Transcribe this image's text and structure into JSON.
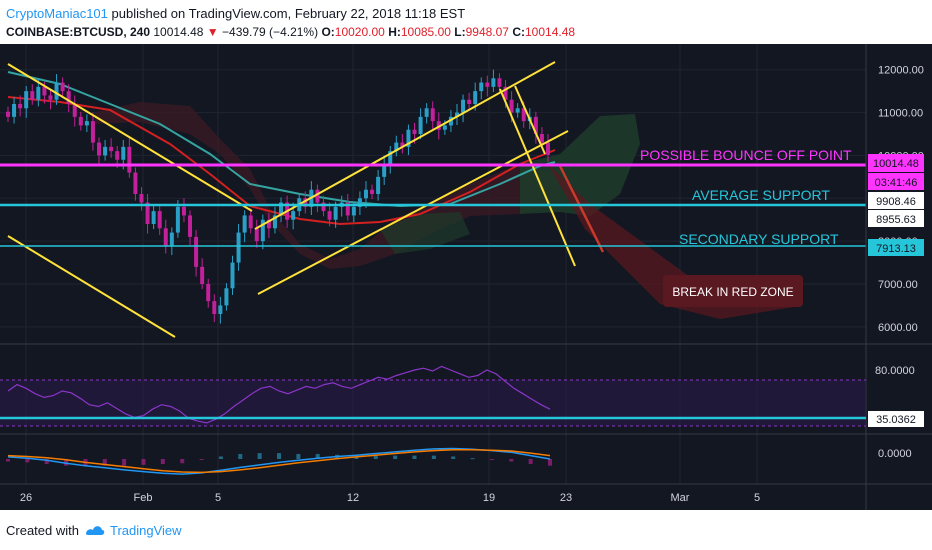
{
  "header": {
    "author": "CryptoManiac101",
    "published": "published on TradingView.com, February 22, 2018 11:18 EST",
    "symbol": "COINBASE:BTCUSD, 240",
    "last": "10014.48",
    "arrow": "▼",
    "change": "−439.79 (−4.21%)",
    "open_label": "O:",
    "open": "10020.00",
    "high_label": "H:",
    "high": "10085.00",
    "low_label": "L:",
    "low": "9948.07",
    "close_label": "C:",
    "close": "10014.48"
  },
  "footer": {
    "created": "Created with",
    "brand": "TradingView"
  },
  "colors": {
    "background": "#131722",
    "candle_up": "#2aa0c8",
    "candle_down": "#c2219b",
    "trendline": "#ffe23a",
    "support": "#26c6da",
    "bounce": "#ff35ff",
    "ma_red": "#d42020",
    "ma_teal": "#35a3a0",
    "rsi": "#8c35c9"
  },
  "chart_data": [
    {
      "type": "candlestick",
      "symbol": "COINBASE:BTCUSD",
      "interval": "240",
      "x_ticks": [
        "26",
        "Feb",
        "5",
        "12",
        "19",
        "23",
        "Mar",
        "5"
      ],
      "y_ticks": [
        "6000.00",
        "7000.00",
        "8000.00",
        "9000.00",
        "10000.00",
        "11000.00",
        "12000.00"
      ],
      "ylim": [
        5600,
        12600
      ],
      "close_series": [
        10900,
        11200,
        11100,
        11500,
        11300,
        11600,
        11400,
        11300,
        11700,
        11500,
        11200,
        10900,
        10700,
        10800,
        10300,
        10000,
        10200,
        10100,
        9900,
        10200,
        9600,
        9100,
        8900,
        8400,
        8700,
        8300,
        7900,
        8200,
        8800,
        8600,
        8100,
        7400,
        7000,
        6600,
        6300,
        6500,
        6900,
        7500,
        8200,
        8600,
        8300,
        8000,
        8500,
        8300,
        8600,
        8900,
        8500,
        8700,
        9000,
        8800,
        9200,
        8900,
        8700,
        8500,
        8800,
        8900,
        8600,
        8800,
        9000,
        9200,
        9100,
        9500,
        9800,
        10100,
        10300,
        10200,
        10600,
        10500,
        10900,
        11100,
        10800,
        10600,
        10700,
        10900,
        11000,
        11300,
        11200,
        11500,
        11700,
        11600,
        11800,
        11600,
        11300,
        11000,
        11100,
        10800,
        10900,
        10500,
        10300,
        10014
      ],
      "annotations": [
        "POSSIBLE BOUNCE OFF POINT",
        "AVERAGE SUPPORT",
        "SECONDARY SUPPORT",
        "BREAK IN RED ZONE"
      ],
      "price_labels": [
        {
          "label": "10014.48",
          "value": 10014.48
        },
        {
          "label": "03:41:46",
          "value": null
        },
        {
          "label": "9908.46",
          "value": 9908.46
        },
        {
          "label": "8955.63",
          "value": 8955.63
        },
        {
          "label": "7913.13",
          "value": 7913.13
        }
      ],
      "horizontal_levels": [
        {
          "name": "POSSIBLE BOUNCE OFF POINT",
          "value": 10014.48
        },
        {
          "name": "AVERAGE SUPPORT",
          "value": 9908.46
        },
        {
          "name": "SECONDARY SUPPORT",
          "value": 7913.13
        }
      ]
    },
    {
      "type": "line",
      "indicator": "RSI",
      "y_ticks": [
        "80.0000",
        "35.0362"
      ],
      "ylim": [
        10,
        100
      ],
      "bands": [
        70,
        30
      ],
      "last_value": 35.0362,
      "values": [
        55,
        62,
        58,
        52,
        48,
        50,
        55,
        53,
        47,
        40,
        38,
        42,
        36,
        30,
        26,
        28,
        35,
        40,
        38,
        33,
        25,
        22,
        20,
        24,
        30,
        38,
        45,
        52,
        58,
        60,
        55,
        52,
        56,
        60,
        58,
        62,
        64,
        60,
        58,
        62,
        66,
        70,
        68,
        72,
        75,
        78,
        80,
        77,
        82,
        78,
        74,
        70,
        72,
        78,
        74,
        66,
        58,
        52,
        46,
        40,
        35
      ]
    },
    {
      "type": "line",
      "indicator": "MACD",
      "y_ticks": [
        "0.0000"
      ],
      "ylim": [
        -5,
        5
      ],
      "macd": [
        0.5,
        0.2,
        -0.3,
        -1.0,
        -1.6,
        -2.1,
        -2.6,
        -3.0,
        -3.4,
        -3.6,
        -3.3,
        -2.7,
        -2.0,
        -1.4,
        -0.8,
        -0.3,
        0.2,
        0.6,
        0.9,
        1.3,
        1.7,
        2.1,
        2.4,
        2.5,
        2.3,
        2.0,
        1.6,
        0.8,
        0.0
      ],
      "signal": [
        0.8,
        0.6,
        0.3,
        -0.2,
        -0.8,
        -1.3,
        -1.8,
        -2.3,
        -2.8,
        -3.1,
        -3.2,
        -3.0,
        -2.6,
        -2.1,
        -1.5,
        -0.9,
        -0.4,
        0.1,
        0.5,
        0.9,
        1.3,
        1.7,
        2.0,
        2.2,
        2.2,
        2.1,
        1.9,
        1.4,
        0.8
      ]
    }
  ]
}
